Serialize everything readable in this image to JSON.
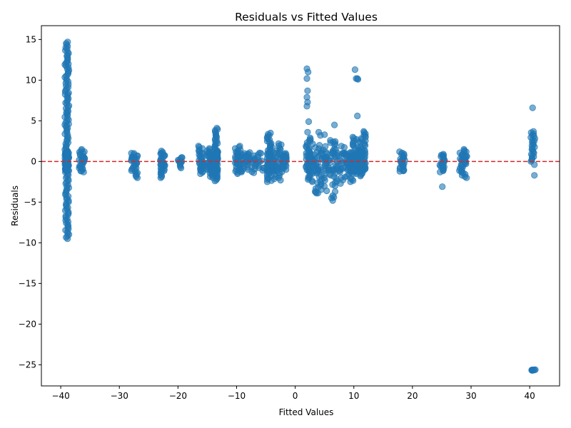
{
  "chart_data": {
    "type": "scatter",
    "title": "Residuals vs Fitted Values",
    "xlabel": "Fitted Values",
    "ylabel": "Residuals",
    "xlim": [
      -43.3,
      45.1
    ],
    "ylim": [
      -27.6,
      16.7
    ],
    "xticks": [
      -40,
      -30,
      -20,
      -10,
      0,
      10,
      20,
      30,
      40
    ],
    "yticks": [
      -25,
      -20,
      -15,
      -10,
      -5,
      0,
      5,
      10,
      15
    ],
    "grid": false,
    "reference_line": {
      "y": 0,
      "style": "dashed",
      "color": "#d62728"
    },
    "point_color": "#1f77b4",
    "point_alpha": 0.6,
    "clusters": [
      {
        "x": [
          -39.3,
          -38.6
        ],
        "y": [
          -9.5,
          14.7
        ]
      },
      {
        "x": [
          -36.9,
          -35.9
        ],
        "y": [
          -1.3,
          1.5
        ]
      },
      {
        "x": [
          -28.0,
          -26.9
        ],
        "y": [
          -2.0,
          1.0
        ]
      },
      {
        "x": [
          -23.0,
          -22.2
        ],
        "y": [
          -2.0,
          1.3
        ]
      },
      {
        "x": [
          -20.0,
          -19.2
        ],
        "y": [
          -0.8,
          0.5
        ]
      },
      {
        "x": [
          -16.5,
          -15.7
        ],
        "y": [
          -1.5,
          1.9
        ]
      },
      {
        "x": [
          -15.0,
          -14.0
        ],
        "y": [
          -2.0,
          1.6
        ]
      },
      {
        "x": [
          -13.8,
          -13.2
        ],
        "y": [
          -2.4,
          4.1
        ]
      },
      {
        "x": [
          -10.3,
          -9.3
        ],
        "y": [
          -1.5,
          1.9
        ]
      },
      {
        "x": [
          -9.3,
          -7.7
        ],
        "y": [
          -1.3,
          1.1
        ]
      },
      {
        "x": [
          -7.7,
          -5.0
        ],
        "y": [
          -1.4,
          1.0
        ]
      },
      {
        "x": [
          -4.8,
          -4.0
        ],
        "y": [
          -2.5,
          3.5
        ]
      },
      {
        "x": [
          -4.0,
          -2.0
        ],
        "y": [
          -2.3,
          2.2
        ]
      },
      {
        "x": [
          -2.0,
          -1.5
        ],
        "y": [
          -1.0,
          1.0
        ]
      },
      {
        "x": [
          1.8,
          3.0
        ],
        "y": [
          -2.5,
          2.9
        ]
      },
      {
        "x": [
          3.0,
          5.5
        ],
        "y": [
          -3.9,
          2.0
        ]
      },
      {
        "x": [
          5.5,
          8.5
        ],
        "y": [
          -3.0,
          2.6
        ]
      },
      {
        "x": [
          8.5,
          10.0
        ],
        "y": [
          -2.5,
          1.0
        ]
      },
      {
        "x": [
          9.8,
          11.0
        ],
        "y": [
          -1.5,
          3.0
        ]
      },
      {
        "x": [
          11.0,
          12.0
        ],
        "y": [
          -1.8,
          3.7
        ]
      },
      {
        "x": [
          17.8,
          18.7
        ],
        "y": [
          -1.2,
          1.2
        ]
      },
      {
        "x": [
          24.6,
          25.5
        ],
        "y": [
          -1.3,
          0.9
        ]
      },
      {
        "x": [
          28.0,
          29.3
        ],
        "y": [
          -2.0,
          1.5
        ]
      },
      {
        "x": [
          40.2,
          40.9
        ],
        "y": [
          0.0,
          3.7
        ]
      },
      {
        "x": [
          40.2,
          41.0
        ],
        "y": [
          -25.7,
          -25.6
        ]
      }
    ],
    "outliers": [
      [
        -39.3,
        4.5
      ],
      [
        -39.0,
        6.0
      ],
      [
        -38.8,
        8.3
      ],
      [
        -38.7,
        12.0
      ],
      [
        2.0,
        11.4
      ],
      [
        2.2,
        11.0
      ],
      [
        2.0,
        10.2
      ],
      [
        2.1,
        8.7
      ],
      [
        2.0,
        7.9
      ],
      [
        2.1,
        7.3
      ],
      [
        2.0,
        6.8
      ],
      [
        2.3,
        4.9
      ],
      [
        2.1,
        3.6
      ],
      [
        4.0,
        3.6
      ],
      [
        4.3,
        3.2
      ],
      [
        5.0,
        3.3
      ],
      [
        3.4,
        -3.7
      ],
      [
        3.6,
        -3.9
      ],
      [
        6.5,
        2.4
      ],
      [
        6.7,
        4.5
      ],
      [
        10.2,
        11.3
      ],
      [
        10.4,
        10.2
      ],
      [
        10.6,
        10.2
      ],
      [
        10.7,
        10.1
      ],
      [
        10.6,
        5.6
      ],
      [
        6.4,
        -4.2
      ],
      [
        6.2,
        -4.5
      ],
      [
        6.4,
        -4.8
      ],
      [
        6.8,
        -3.7
      ],
      [
        6.6,
        -4.4
      ],
      [
        25.1,
        -3.1
      ],
      [
        40.5,
        6.6
      ],
      [
        40.8,
        -0.4
      ],
      [
        40.8,
        -1.7
      ]
    ]
  }
}
